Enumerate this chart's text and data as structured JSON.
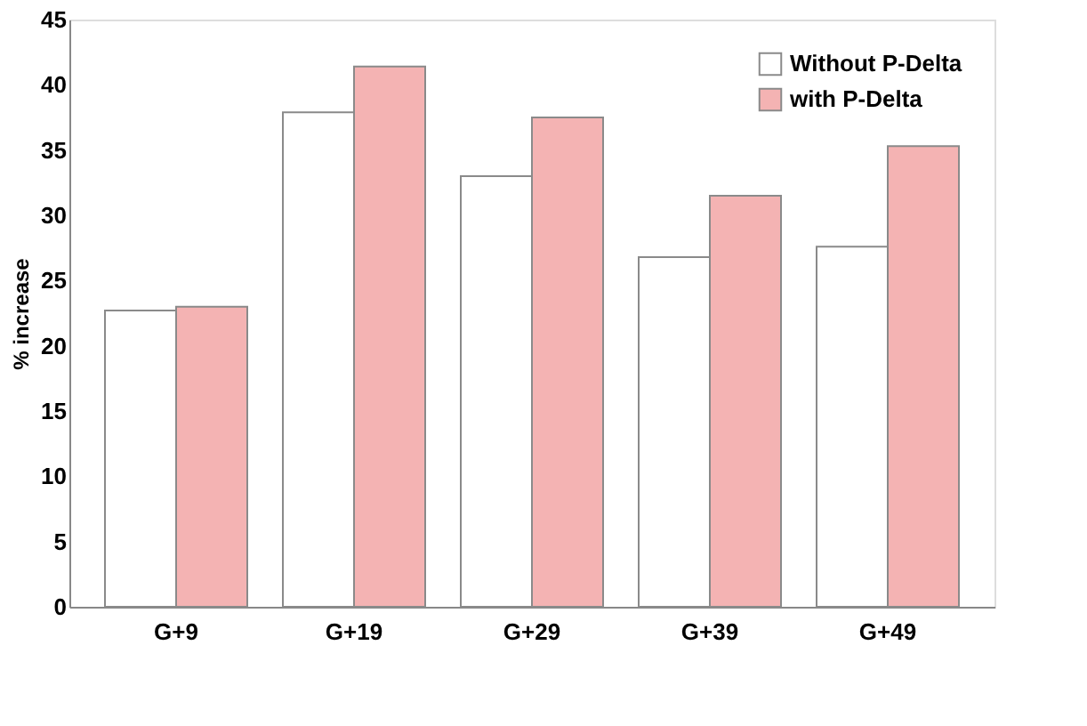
{
  "chart_data": {
    "type": "bar",
    "ylabel": "% increase",
    "categories": [
      "G+9",
      "G+19",
      "G+29",
      "G+39",
      "G+49"
    ],
    "series": [
      {
        "name": "Without P-Delta",
        "color": "#ffffff",
        "values": [
          22.7,
          37.9,
          33.0,
          26.8,
          27.6
        ]
      },
      {
        "name": "with P-Delta",
        "color": "#f4b3b3",
        "values": [
          23.0,
          41.4,
          37.5,
          31.5,
          35.3
        ]
      }
    ],
    "ylim": [
      0,
      45
    ],
    "yticks": [
      0,
      5,
      10,
      15,
      20,
      25,
      30,
      35,
      40,
      45
    ],
    "grid": false,
    "legend": "top right"
  }
}
